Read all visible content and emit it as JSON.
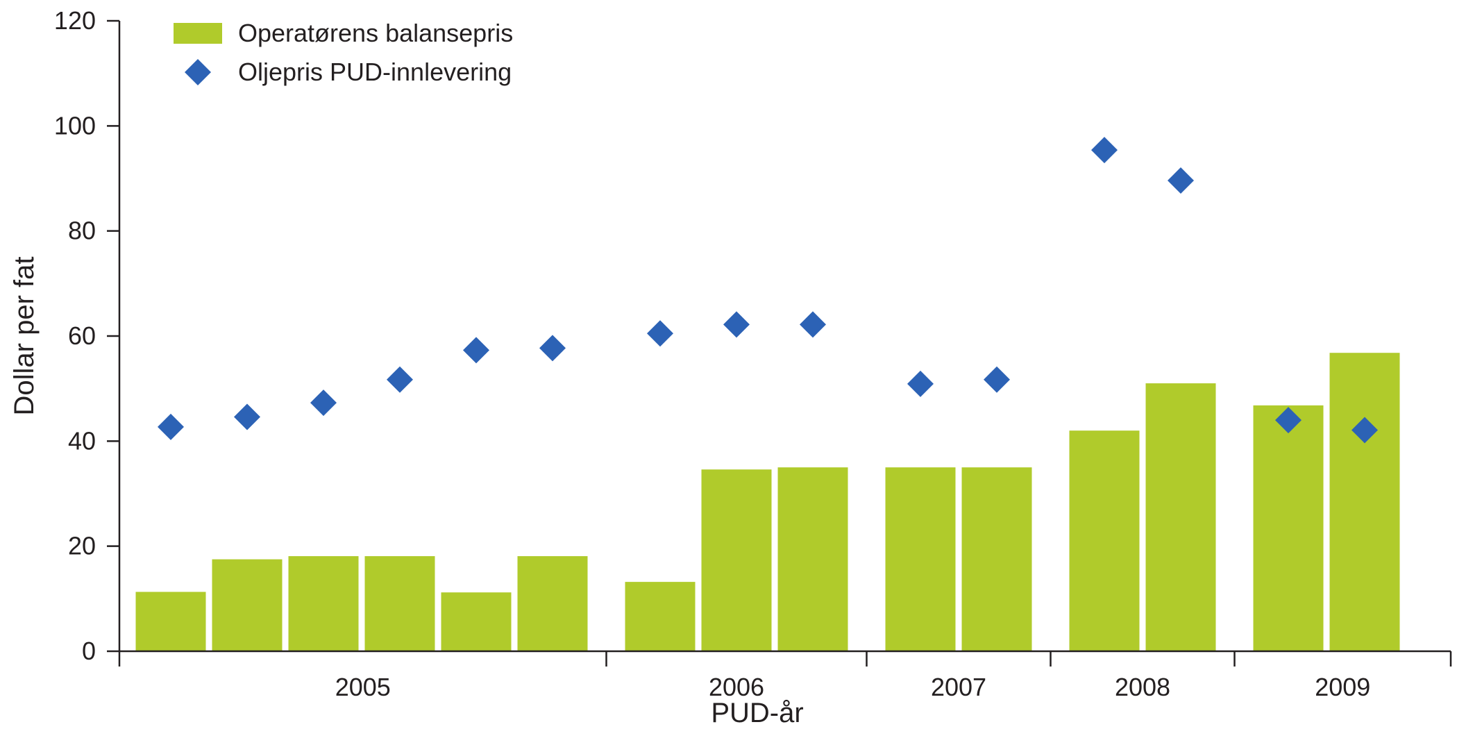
{
  "chart_data": {
    "type": "bar",
    "xlabel": "PUD-år",
    "ylabel": "Dollar per fat",
    "ylim": [
      0,
      120
    ],
    "yticks": [
      0,
      20,
      40,
      60,
      80,
      100,
      120
    ],
    "grid": false,
    "legend_position": "top-left",
    "groups": [
      {
        "label": "2005",
        "count": 6
      },
      {
        "label": "2006",
        "count": 3
      },
      {
        "label": "2007",
        "count": 2
      },
      {
        "label": "2008",
        "count": 2
      },
      {
        "label": "2009",
        "count": 2
      }
    ],
    "series": [
      {
        "name": "Operatørens balansepris",
        "type": "bar",
        "color": "#b0cb2b",
        "values": [
          11.3,
          17.5,
          18.1,
          18.1,
          11.2,
          18.1,
          13.2,
          34.6,
          35.0,
          35.0,
          35.0,
          42.0,
          51.0,
          46.8,
          56.8
        ]
      },
      {
        "name": "Oljepris PUD-innlevering",
        "type": "scatter",
        "marker": "diamond",
        "color": "#2c62b5",
        "values": [
          42.7,
          44.6,
          47.3,
          51.7,
          57.3,
          57.7,
          60.5,
          62.2,
          62.2,
          50.9,
          51.7,
          95.4,
          89.6,
          44.0,
          42.1
        ]
      }
    ]
  }
}
